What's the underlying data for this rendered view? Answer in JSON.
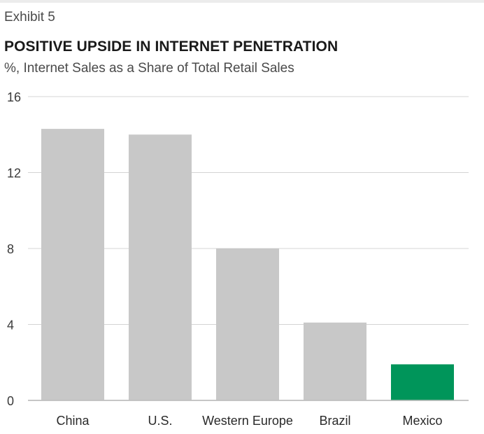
{
  "exhibit_label": "Exhibit 5",
  "chart_data": {
    "type": "bar",
    "title": "POSITIVE UPSIDE IN INTERNET PENETRATION",
    "subtitle": "%, Internet Sales as a Share of Total Retail Sales",
    "xlabel": "",
    "ylabel": "",
    "categories": [
      "China",
      "U.S.",
      "Western Europe",
      "Brazil",
      "Mexico"
    ],
    "values": [
      14.3,
      14.0,
      8.0,
      4.1,
      1.9
    ],
    "ylim": [
      0,
      16
    ],
    "yticks": [
      "0",
      "4",
      "8",
      "12",
      "16"
    ],
    "grid": true,
    "colors": [
      "#c8c8c8",
      "#c8c8c8",
      "#c8c8c8",
      "#c8c8c8",
      "#00955a"
    ],
    "gridline_color": "#d4d4d4",
    "axis_color": "#bdbdbd"
  }
}
